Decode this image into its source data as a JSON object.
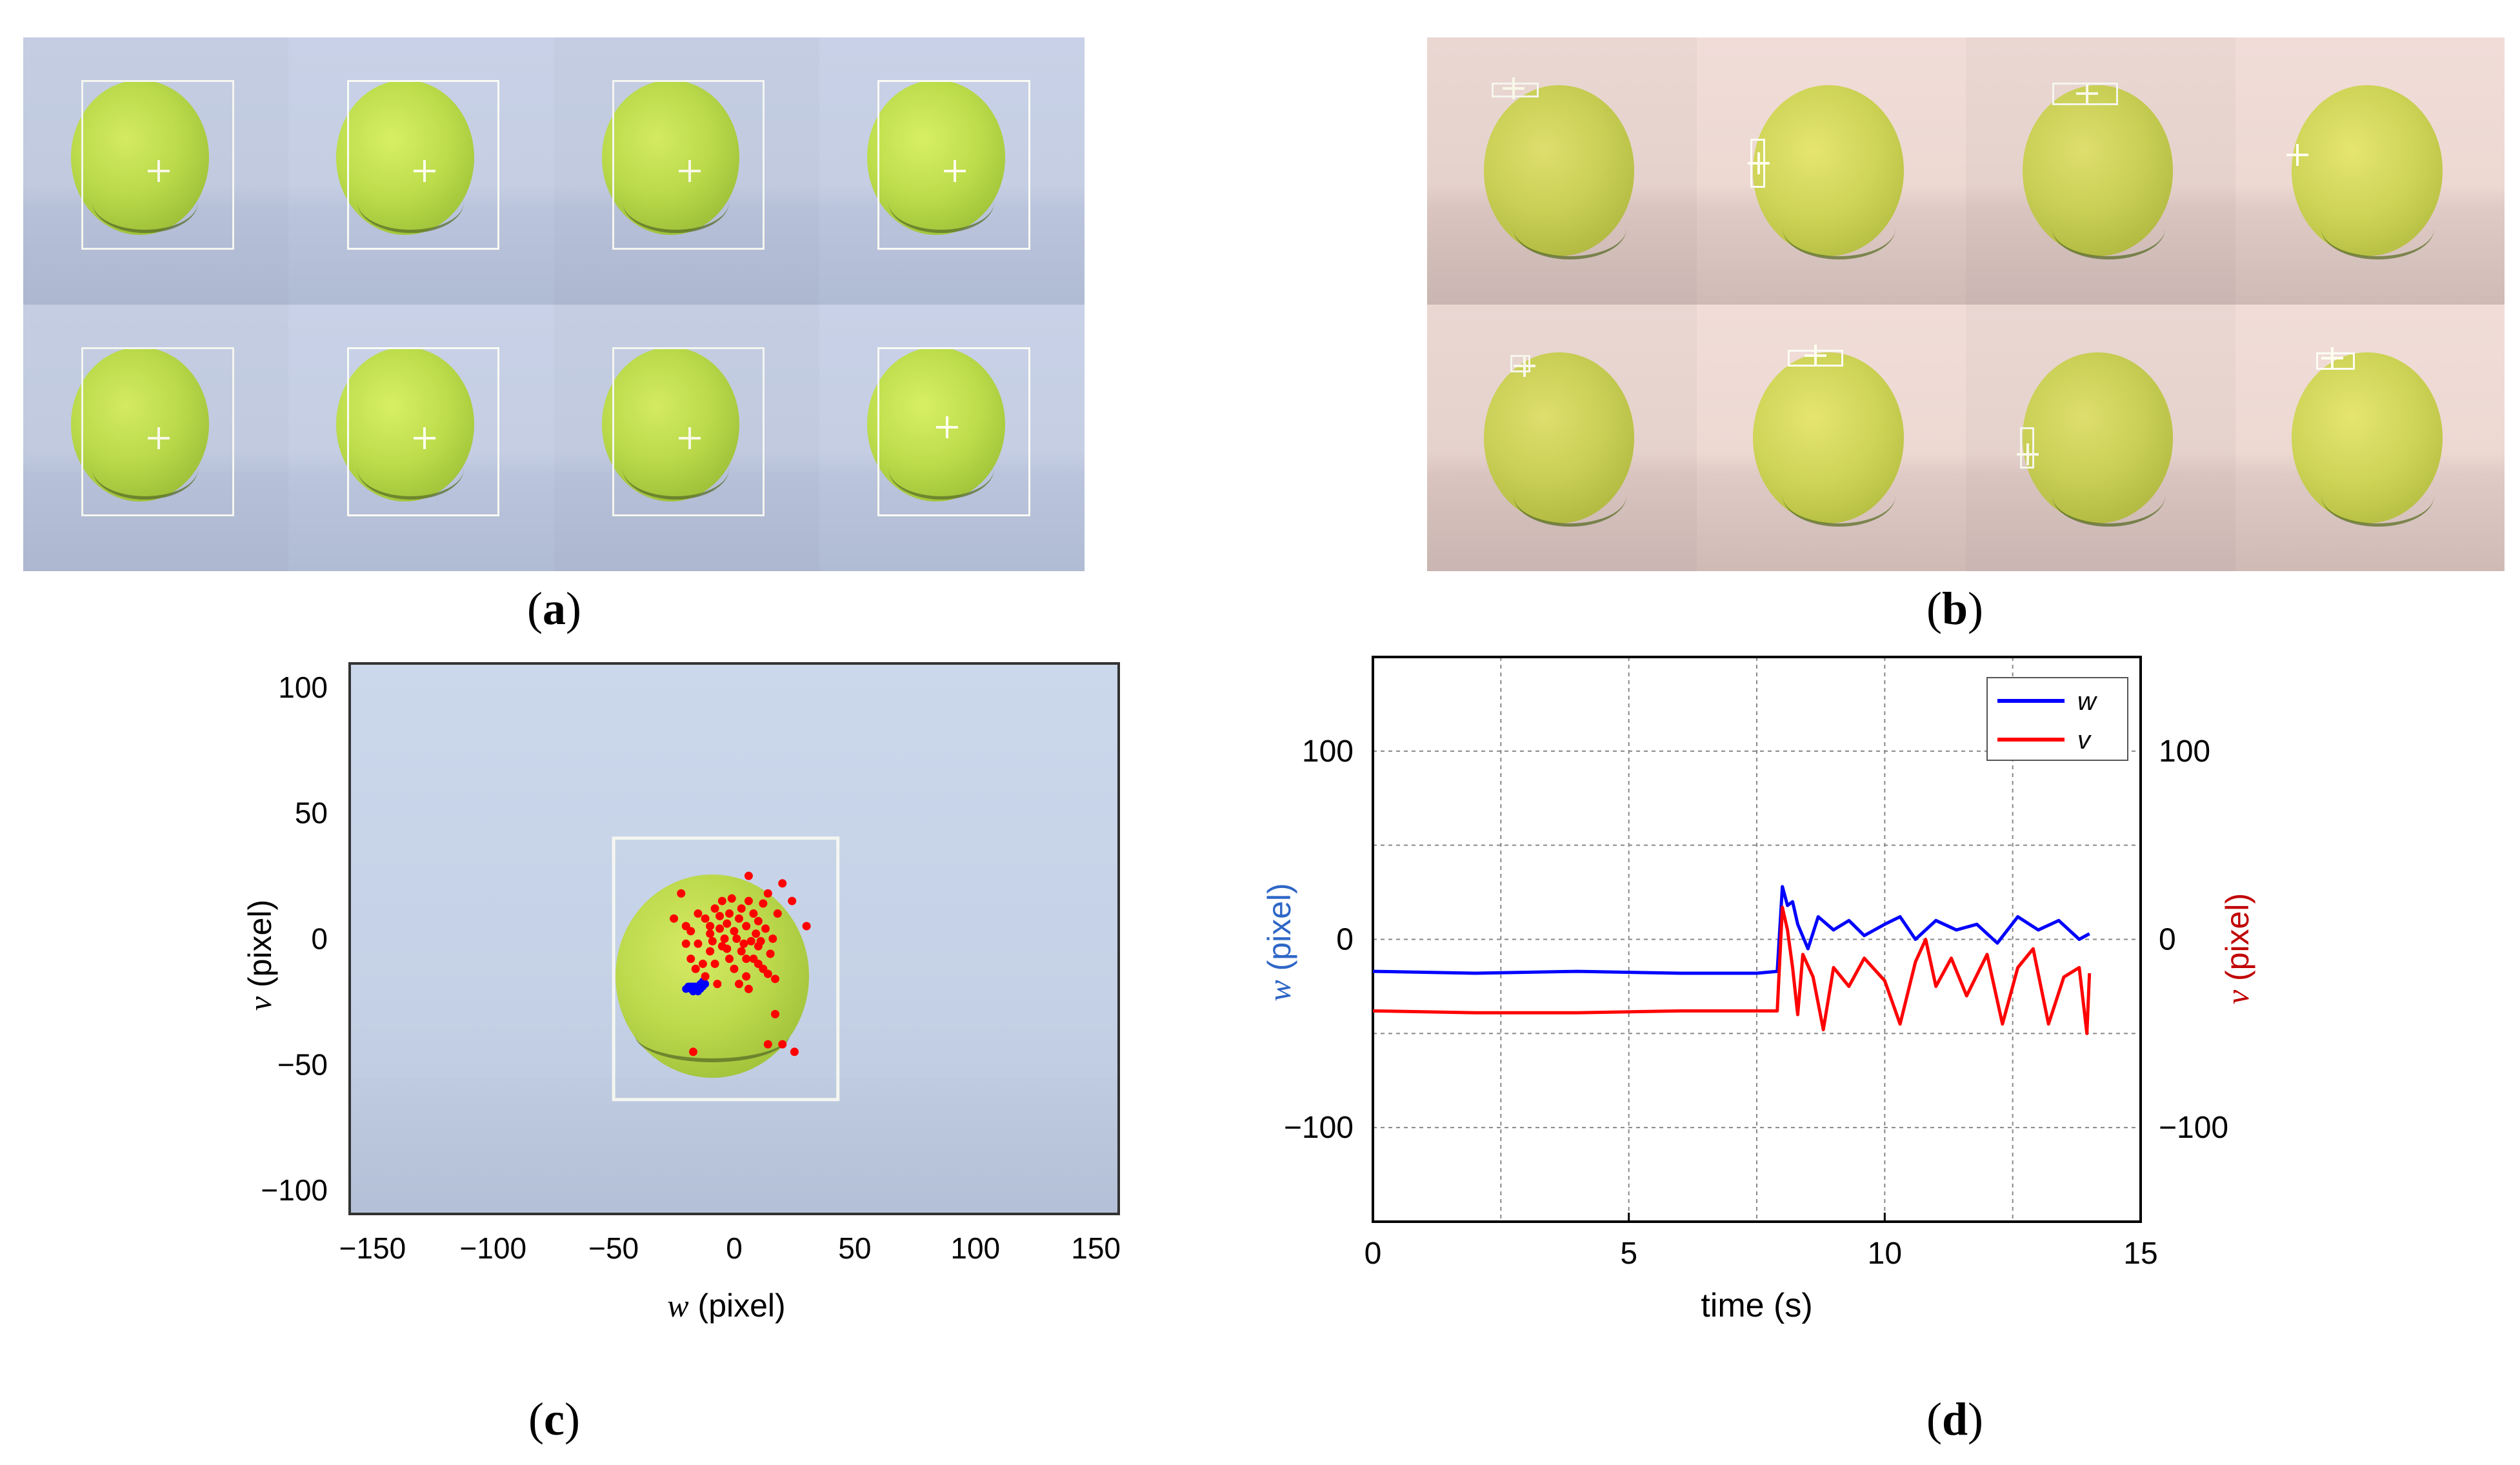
{
  "labels": {
    "a": {
      "open": "(",
      "letter": "a",
      "close": ")"
    },
    "b": {
      "open": "(",
      "letter": "b",
      "close": ")"
    },
    "c": {
      "open": "(",
      "letter": "c",
      "close": ")"
    },
    "d": {
      "open": "(",
      "letter": "d",
      "close": ")"
    }
  },
  "colors": {
    "w": "#0000ff",
    "v": "#ff0000",
    "w_axis_label": "#2f66c6",
    "v_axis_label": "#c00000"
  },
  "chart_data": [
    {
      "type": "scatter",
      "panel": "c",
      "xlabel_var": "w",
      "xlabel_unit": "(pixel)",
      "ylabel_var": "v",
      "ylabel_unit": "(pixel)",
      "xlim": [
        -160,
        160
      ],
      "ylim": [
        -110,
        110
      ],
      "xticks": [
        -150,
        -100,
        -50,
        0,
        50,
        100,
        150
      ],
      "yticks": [
        100,
        50,
        0,
        -50,
        -100
      ],
      "xtick_labels": [
        "−150",
        "−100",
        "−50",
        "0",
        "50",
        "100",
        "150"
      ],
      "ytick_labels": [
        "100",
        "50",
        "0",
        "−50",
        "−100"
      ],
      "tracking_box": {
        "w_min": -50,
        "w_max": 43,
        "v_min": -64,
        "v_max": 40
      },
      "series": [
        {
          "name": "blue cluster",
          "color": "#0000ff",
          "points": [
            [
              -20,
              -20
            ],
            [
              -19,
              -19
            ],
            [
              -18,
              -20
            ],
            [
              -17,
              -19
            ],
            [
              -16,
              -20
            ],
            [
              -15,
              -19
            ],
            [
              -14,
              -18
            ],
            [
              -13,
              -19
            ],
            [
              -12,
              -18
            ],
            [
              -14,
              -20
            ],
            [
              -16,
              -19
            ],
            [
              -18,
              -19
            ],
            [
              -17,
              -21
            ],
            [
              -15,
              -21
            ],
            [
              -13,
              -17
            ]
          ]
        },
        {
          "name": "red points",
          "color": "#ff0000",
          "points": [
            [
              -25,
              8
            ],
            [
              -20,
              5
            ],
            [
              -18,
              3
            ],
            [
              -15,
              10
            ],
            [
              -12,
              8
            ],
            [
              -10,
              5
            ],
            [
              -8,
              12
            ],
            [
              -6,
              9
            ],
            [
              -5,
              15
            ],
            [
              -3,
              6
            ],
            [
              -2,
              10
            ],
            [
              0,
              3
            ],
            [
              2,
              8
            ],
            [
              3,
              12
            ],
            [
              5,
              5
            ],
            [
              6,
              15
            ],
            [
              8,
              10
            ],
            [
              10,
              7
            ],
            [
              12,
              14
            ],
            [
              14,
              18
            ],
            [
              18,
              10
            ],
            [
              20,
              22
            ],
            [
              24,
              15
            ],
            [
              -10,
              -5
            ],
            [
              -8,
              -10
            ],
            [
              -5,
              -3
            ],
            [
              -2,
              -8
            ],
            [
              0,
              -12
            ],
            [
              3,
              -5
            ],
            [
              5,
              -15
            ],
            [
              8,
              -8
            ],
            [
              10,
              -3
            ],
            [
              12,
              -12
            ],
            [
              15,
              -6
            ],
            [
              -12,
              -15
            ],
            [
              -7,
              -18
            ],
            [
              2,
              -18
            ],
            [
              6,
              -20
            ],
            [
              -15,
              -2
            ],
            [
              -18,
              -8
            ],
            [
              -20,
              -2
            ],
            [
              -10,
              2
            ],
            [
              -4,
              0
            ],
            [
              1,
              0
            ],
            [
              4,
              -2
            ],
            [
              9,
              2
            ],
            [
              11,
              -1
            ],
            [
              13,
              4
            ],
            [
              16,
              0
            ],
            [
              7,
              -1
            ],
            [
              -6,
              4
            ],
            [
              -9,
              -1
            ],
            [
              -3,
              -4
            ],
            [
              5,
              -8
            ],
            [
              10,
              -10
            ],
            [
              14,
              -14
            ],
            [
              -13,
              -10
            ],
            [
              -16,
              -12
            ],
            [
              17,
              -16
            ],
            [
              -1,
              16
            ],
            [
              -17,
              -45
            ],
            [
              20,
              -42
            ],
            [
              25,
              -45
            ],
            [
              14,
              -42
            ],
            [
              -22,
              18
            ],
            [
              17,
              -30
            ],
            [
              30,
              5
            ],
            [
              6,
              25
            ]
          ]
        }
      ]
    },
    {
      "type": "line",
      "panel": "d",
      "xlabel": "time (s)",
      "ylabel_left_var": "w",
      "ylabel_left_unit": "(pixel)",
      "ylabel_right_var": "v",
      "ylabel_right_unit": "(pixel)",
      "xlim": [
        0,
        15
      ],
      "ylim": [
        -150,
        150
      ],
      "xticks": [
        0,
        5,
        10,
        15
      ],
      "xtick_labels": [
        "0",
        "5",
        "10",
        "15"
      ],
      "yticks": [
        100,
        0,
        -100
      ],
      "ytick_labels": [
        "100",
        "0",
        "−100"
      ],
      "grid": true,
      "legend_position": "top-right",
      "series": [
        {
          "name": "w",
          "color": "#0000ff",
          "x": [
            0,
            2,
            4,
            6,
            7.5,
            7.9,
            8.0,
            8.1,
            8.2,
            8.3,
            8.5,
            8.7,
            9.0,
            9.3,
            9.6,
            10.0,
            10.3,
            10.6,
            11.0,
            11.4,
            11.8,
            12.2,
            12.6,
            13.0,
            13.4,
            13.8,
            14.0
          ],
          "y": [
            -17,
            -18,
            -17,
            -18,
            -18,
            -17,
            28,
            18,
            20,
            8,
            -5,
            12,
            5,
            10,
            2,
            8,
            12,
            0,
            10,
            5,
            8,
            -2,
            12,
            5,
            10,
            0,
            3
          ]
        },
        {
          "name": "v",
          "color": "#ff0000",
          "x": [
            0,
            2,
            4,
            6,
            7.5,
            7.9,
            8.0,
            8.1,
            8.2,
            8.3,
            8.4,
            8.6,
            8.8,
            9.0,
            9.3,
            9.6,
            10.0,
            10.3,
            10.6,
            10.8,
            11.0,
            11.3,
            11.6,
            12.0,
            12.3,
            12.6,
            12.9,
            13.2,
            13.5,
            13.8,
            13.95,
            14.0
          ],
          "y": [
            -38,
            -39,
            -39,
            -38,
            -38,
            -38,
            17,
            5,
            -15,
            -40,
            -8,
            -20,
            -48,
            -15,
            -25,
            -10,
            -22,
            -45,
            -12,
            0,
            -25,
            -10,
            -30,
            -8,
            -45,
            -15,
            -5,
            -45,
            -20,
            -15,
            -50,
            -18
          ]
        }
      ]
    }
  ]
}
